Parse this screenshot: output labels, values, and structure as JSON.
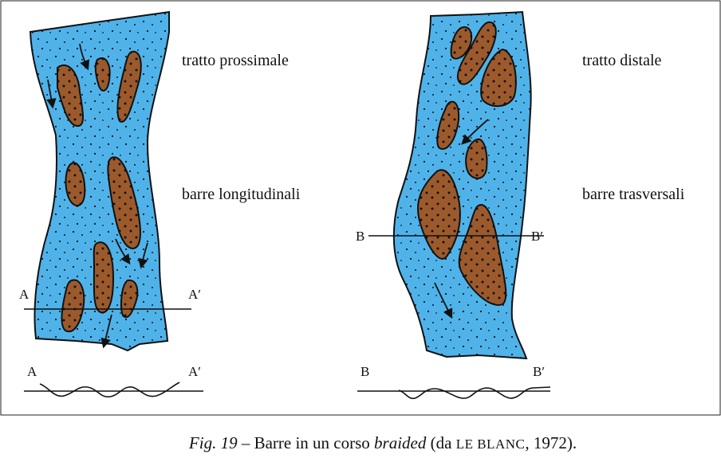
{
  "figure": {
    "left": {
      "top_label": "tratto prossimale",
      "mid_label": "barre longitudinali",
      "section_start": "A",
      "section_end": "A′",
      "profile_start": "A",
      "profile_end": "A′"
    },
    "right": {
      "top_label": "tratto distale",
      "mid_label": "barre trasversali",
      "section_start": "B",
      "section_end": "B′",
      "profile_start": "B",
      "profile_end": "B′"
    },
    "caption": {
      "number": "Fig. 19",
      "text1": " – Barre in un corso ",
      "term": "braided",
      "text2": " (da ",
      "author": "LE BLANC",
      "text3": ", 1972)."
    }
  }
}
